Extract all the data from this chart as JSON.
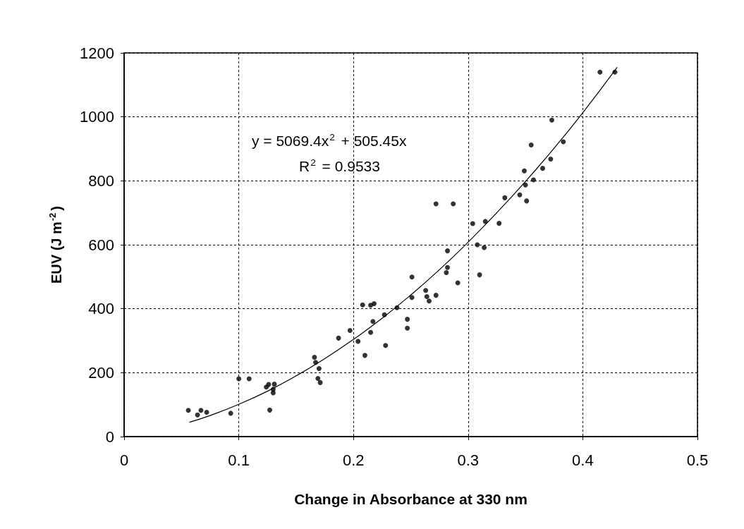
{
  "chart_data": {
    "type": "scatter",
    "xlabel": "Change in Absorbance at 330 nm",
    "ylabel": "EUV (J m$^{-2}$)",
    "xlim": [
      0,
      0.5
    ],
    "xticks": [
      0,
      0.1,
      0.2,
      0.3,
      0.4,
      0.5
    ],
    "ylim": [
      0,
      1200
    ],
    "yticks": [
      0,
      200,
      400,
      600,
      800,
      1000,
      1200
    ],
    "grid": true,
    "marker": "circle",
    "annotations": [
      "y = 5069.4x$^{2}$ + 505.45x",
      "R$^{2}$ = 0.9533"
    ],
    "series": [
      {
        "color": "#000000",
        "x": [
          0.056,
          0.064,
          0.067,
          0.072,
          0.093,
          0.1,
          0.109,
          0.124,
          0.126,
          0.131,
          0.13,
          0.13,
          0.127,
          0.166,
          0.167,
          0.17,
          0.169,
          0.171,
          0.187,
          0.197,
          0.204,
          0.208,
          0.21,
          0.215,
          0.215,
          0.217,
          0.218,
          0.227,
          0.228,
          0.238,
          0.247,
          0.247,
          0.251,
          0.251,
          0.263,
          0.264,
          0.266,
          0.272,
          0.272,
          0.281,
          0.282,
          0.282,
          0.287,
          0.291,
          0.304,
          0.308,
          0.31,
          0.314,
          0.315,
          0.327,
          0.332,
          0.345,
          0.349,
          0.35,
          0.351,
          0.355,
          0.357,
          0.365,
          0.372,
          0.373,
          0.383,
          0.415,
          0.428
        ],
        "values": [
          82,
          68,
          82,
          76,
          73,
          181,
          181,
          155,
          163,
          164,
          148,
          137,
          83,
          248,
          232,
          213,
          182,
          169,
          308,
          332,
          298,
          412,
          254,
          411,
          326,
          360,
          416,
          381,
          285,
          403,
          367,
          339,
          499,
          435,
          457,
          438,
          424,
          728,
          442,
          513,
          581,
          529,
          728,
          481,
          666,
          600,
          506,
          591,
          673,
          667,
          747,
          756,
          831,
          787,
          737,
          912,
          803,
          839,
          868,
          990,
          922,
          1140,
          1140
        ]
      },
      {
        "type": "line",
        "color": "#000000",
        "marker": "none",
        "x": [
          0.057,
          0.075,
          0.1,
          0.125,
          0.15,
          0.175,
          0.2,
          0.225,
          0.25,
          0.275,
          0.3,
          0.325,
          0.35,
          0.375,
          0.4,
          0.43
        ],
        "values": [
          45,
          66,
          101,
          142,
          190,
          244,
          304,
          370,
          443,
          522,
          608,
          700,
          798,
          902,
          1013,
          1155
        ]
      }
    ]
  }
}
